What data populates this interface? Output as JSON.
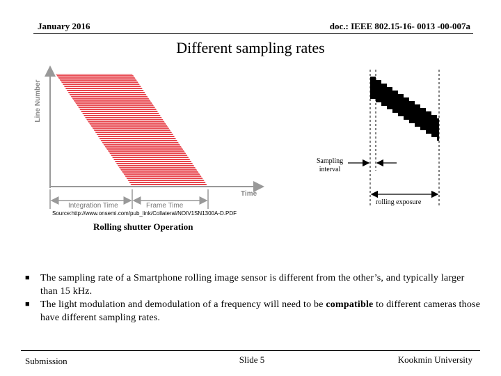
{
  "header": {
    "date": "January 2016",
    "doc": "doc.: IEEE 802.15-16- 0013 -00-007a"
  },
  "title": "Different sampling rates",
  "figure_left": {
    "y_axis_label": "Line Number",
    "x_axis_label": "Time",
    "integration_label": "Integration Time",
    "frame_label": "Frame Time",
    "source": "Source:http://www.onsemi.com/pub_link/Collateral/NOIV1SN1300A-D.PDF",
    "caption": "Rolling shutter Operation",
    "band_color": "#e8474f"
  },
  "figure_right": {
    "sampling_label_1": "Sampling",
    "sampling_label_2": "interval",
    "exposure_label": "rolling exposure"
  },
  "bullets": [
    {
      "text_1": "The sampling rate of a Smartphone rolling image sensor is different from the other’s, and typically larger than 15 kHz."
    },
    {
      "text_1": "The light modulation and demodulation of a frequency will need to be ",
      "bold": "compatible",
      "text_2": " to different cameras those have different sampling rates."
    }
  ],
  "footer": {
    "left": "Submission",
    "center": "Slide 5",
    "right": "Kookmin University"
  }
}
